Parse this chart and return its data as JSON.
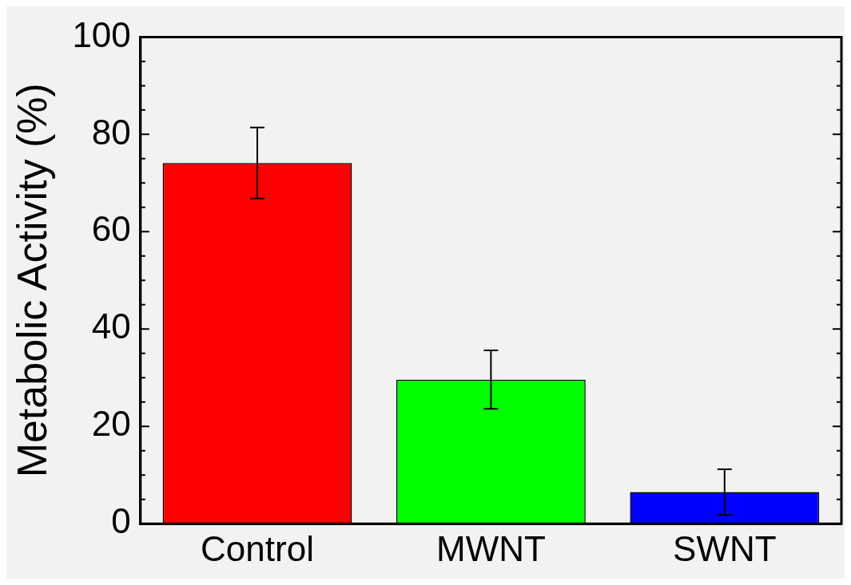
{
  "chart_data": {
    "type": "bar",
    "ylabel": "Metabolic Activity (%)",
    "categories": [
      "Control",
      "MWNT",
      "SWNT"
    ],
    "values": [
      74.1,
      29.6,
      6.5
    ],
    "colors": [
      "#ff0000",
      "#00ff00",
      "#0000ff"
    ],
    "errors": [
      7.3,
      6,
      4.7
    ],
    "ylim": [
      0,
      100
    ],
    "yticks": [
      0,
      {
        "value": 5,
        "label": null
      },
      {
        "value": 10,
        "label": null
      },
      {
        "value": 15,
        "label": null
      },
      20,
      {
        "value": 25,
        "label": null
      },
      {
        "value": 30,
        "label": null
      },
      {
        "value": 35,
        "label": null
      },
      40,
      {
        "value": 45,
        "label": null
      },
      {
        "value": 50,
        "label": null
      },
      {
        "value": 55,
        "label": null
      },
      60,
      {
        "value": 65,
        "label": null
      },
      {
        "value": 70,
        "label": null
      },
      {
        "value": 75,
        "label": null
      },
      80,
      {
        "value": 85,
        "label": null
      },
      {
        "value": 90,
        "label": null
      },
      {
        "value": 95,
        "label": null
      },
      100
    ],
    "grid": false,
    "legend": false
  }
}
